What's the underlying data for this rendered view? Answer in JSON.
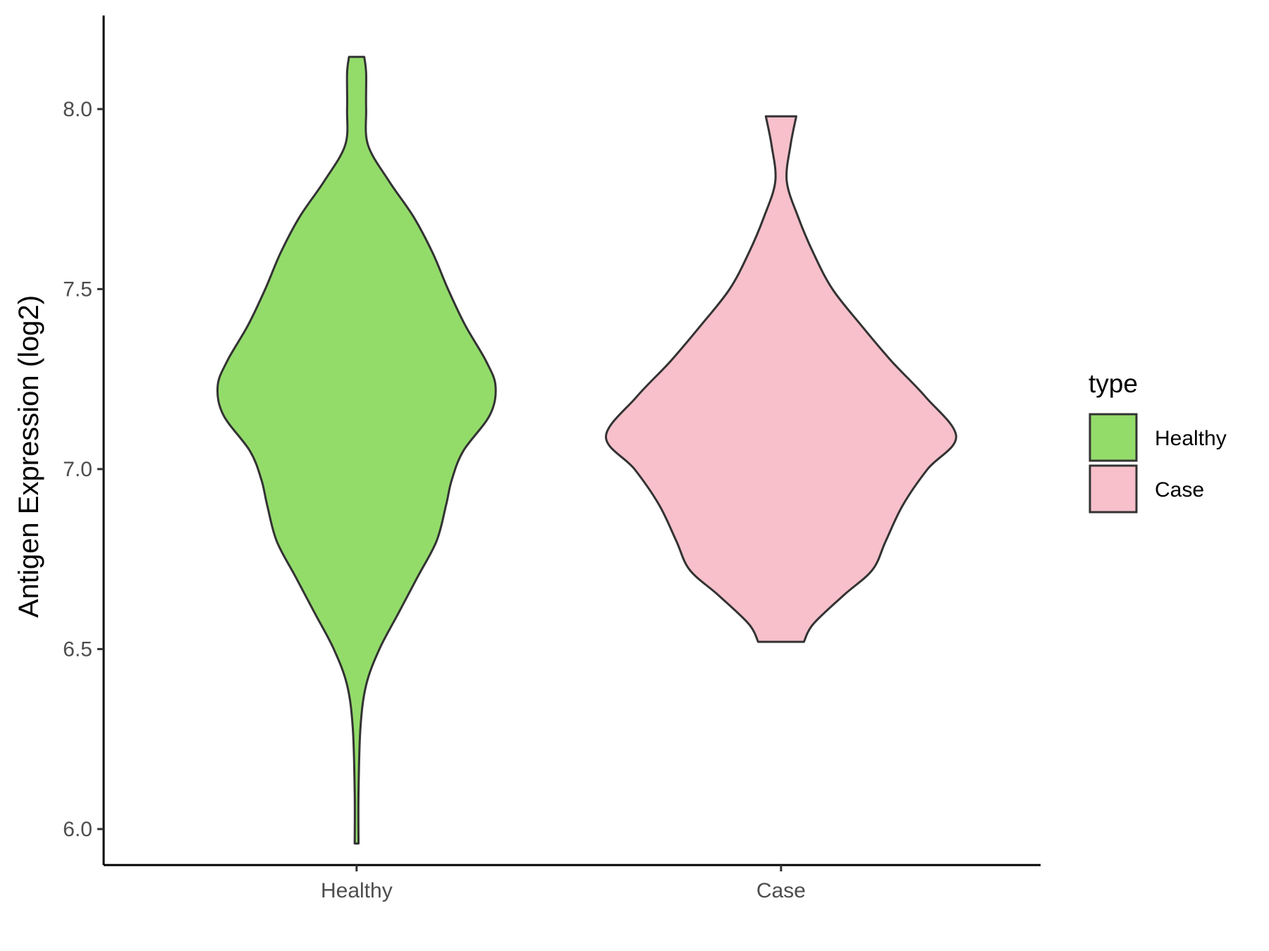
{
  "chart_data": {
    "type": "violin",
    "xlabel": "",
    "ylabel": "Antigen Expression (log2)",
    "ylim": [
      5.9,
      8.26
    ],
    "yticks": [
      "6.0",
      "6.5",
      "7.0",
      "7.5",
      "8.0"
    ],
    "ytick_values": [
      6.0,
      6.5,
      7.0,
      7.5,
      8.0
    ],
    "categories": [
      "Healthy",
      "Case"
    ],
    "grid": false,
    "legend": {
      "title": "type",
      "placement": "right",
      "entries": [
        "Healthy",
        "Case"
      ]
    },
    "series": [
      {
        "name": "Healthy",
        "color": "#93DC6A",
        "min": 5.96,
        "max": 8.145,
        "density_profile": [
          [
            5.96,
            0.01
          ],
          [
            6.1,
            0.01
          ],
          [
            6.28,
            0.02
          ],
          [
            6.4,
            0.05
          ],
          [
            6.5,
            0.12
          ],
          [
            6.6,
            0.22
          ],
          [
            6.7,
            0.32
          ],
          [
            6.8,
            0.42
          ],
          [
            6.9,
            0.47
          ],
          [
            6.97,
            0.5
          ],
          [
            7.05,
            0.56
          ],
          [
            7.15,
            0.7
          ],
          [
            7.23,
            0.73
          ],
          [
            7.3,
            0.68
          ],
          [
            7.4,
            0.57
          ],
          [
            7.5,
            0.48
          ],
          [
            7.6,
            0.4
          ],
          [
            7.7,
            0.3
          ],
          [
            7.8,
            0.17
          ],
          [
            7.9,
            0.06
          ],
          [
            8.0,
            0.05
          ],
          [
            8.1,
            0.05
          ],
          [
            8.145,
            0.04
          ]
        ]
      },
      {
        "name": "Case",
        "color": "#F7C0CB",
        "min": 6.52,
        "max": 7.98,
        "density_profile": [
          [
            6.52,
            0.12
          ],
          [
            6.57,
            0.17
          ],
          [
            6.65,
            0.33
          ],
          [
            6.72,
            0.48
          ],
          [
            6.8,
            0.55
          ],
          [
            6.9,
            0.64
          ],
          [
            7.0,
            0.77
          ],
          [
            7.09,
            0.92
          ],
          [
            7.2,
            0.76
          ],
          [
            7.3,
            0.58
          ],
          [
            7.4,
            0.42
          ],
          [
            7.5,
            0.27
          ],
          [
            7.6,
            0.17
          ],
          [
            7.7,
            0.09
          ],
          [
            7.8,
            0.03
          ],
          [
            7.9,
            0.05
          ],
          [
            7.98,
            0.08
          ]
        ]
      }
    ]
  }
}
